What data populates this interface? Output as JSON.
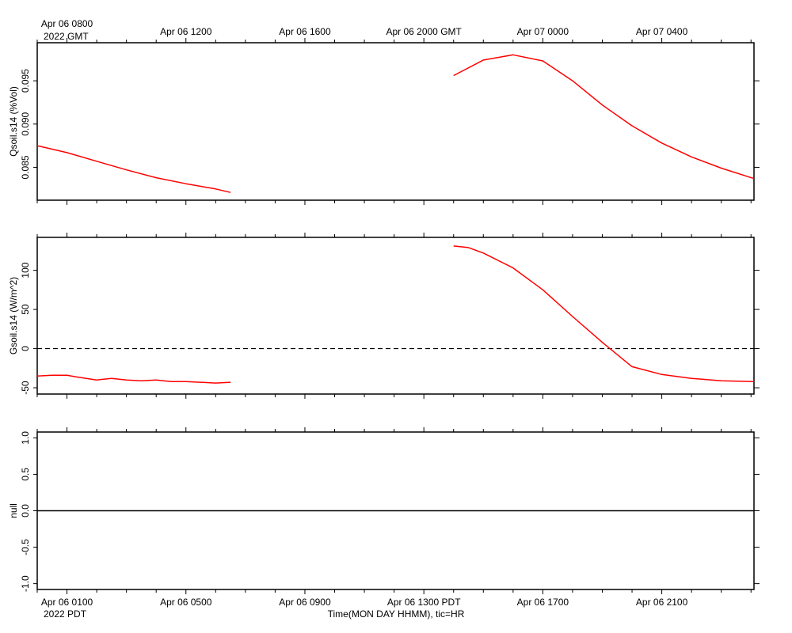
{
  "chart_data": {
    "type": "line",
    "top_axis": {
      "timezone_label": "2022 GMT",
      "first_tick_label": "Apr 06 0800",
      "tick_labels": [
        {
          "hour": 0,
          "label": "Apr 06 0800"
        },
        {
          "hour": 4,
          "label": "Apr 06 1200"
        },
        {
          "hour": 8,
          "label": "Apr 06 1600"
        },
        {
          "hour": 12,
          "label": "Apr 06 2000 GMT"
        },
        {
          "hour": 16,
          "label": "Apr 07 0000"
        },
        {
          "hour": 20,
          "label": "Apr 07 0400"
        }
      ]
    },
    "bottom_axis": {
      "timezone_label": "2022 PDT",
      "title": "Time(MON DAY HHMM), tic=HR",
      "tick_labels": [
        {
          "hour": 0,
          "label": "Apr 06 0100"
        },
        {
          "hour": 4,
          "label": "Apr 06 0500"
        },
        {
          "hour": 8,
          "label": "Apr 06 0900"
        },
        {
          "hour": 12,
          "label": "Apr 06 1300 PDT"
        },
        {
          "hour": 16,
          "label": "Apr 06 1700"
        },
        {
          "hour": 20,
          "label": "Apr 06 2100"
        }
      ]
    },
    "x_unit": "hours after Apr 06 0100 PDT (Apr 06 0800 GMT)",
    "xlim": [
      -1,
      23.1
    ],
    "panels": [
      {
        "ylabel": "Qsoil.s14 (%Vol)",
        "ylim": [
          0.0812,
          0.0994
        ],
        "yticks": [
          0.085,
          0.09,
          0.095
        ],
        "ytick_labels": [
          "0.085",
          "0.090",
          "0.095"
        ],
        "zero_line": false,
        "series": [
          {
            "color": "#ff0000",
            "segments": [
              {
                "x": [
                  -1,
                  0,
                  1,
                  2,
                  3,
                  4,
                  5,
                  5.5
                ],
                "y": [
                  0.0875,
                  0.0867,
                  0.0857,
                  0.0847,
                  0.0838,
                  0.0831,
                  0.0825,
                  0.0821
                ]
              },
              {
                "x": [
                  13,
                  14,
                  15,
                  16,
                  17,
                  18,
                  19,
                  20,
                  21,
                  22,
                  23.1
                ],
                "y": [
                  0.0956,
                  0.0974,
                  0.098,
                  0.0973,
                  0.095,
                  0.0922,
                  0.0898,
                  0.0878,
                  0.0862,
                  0.0849,
                  0.0837
                ]
              }
            ]
          }
        ]
      },
      {
        "ylabel": "Gsoil.s14 (W/m^2)",
        "ylim": [
          -58,
          142
        ],
        "yticks": [
          -50,
          0,
          50,
          100
        ],
        "ytick_labels": [
          "-50",
          "0",
          "50",
          "100"
        ],
        "zero_line": true,
        "series": [
          {
            "color": "#ff0000",
            "segments": [
              {
                "x": [
                  -1,
                  -0.5,
                  0,
                  0.3,
                  1,
                  1.5,
                  2,
                  2.5,
                  3,
                  3.5,
                  4,
                  5,
                  5.5
                ],
                "y": [
                  -35,
                  -34,
                  -34,
                  -36,
                  -40,
                  -38,
                  -40,
                  -41,
                  -40,
                  -42,
                  -42,
                  -44,
                  -43
                ]
              },
              {
                "x": [
                  13,
                  13.5,
                  14,
                  15,
                  16,
                  17,
                  18,
                  19,
                  20,
                  21,
                  22,
                  23.1
                ],
                "y": [
                  131,
                  129,
                  122,
                  103,
                  75,
                  41,
                  8,
                  -23,
                  -33,
                  -38,
                  -41,
                  -42
                ]
              }
            ]
          }
        ]
      },
      {
        "ylabel": "null",
        "ylim": [
          -1.08,
          1.08
        ],
        "yticks": [
          -1,
          -0.5,
          0,
          0.5,
          1
        ],
        "ytick_labels": [
          "-1.0",
          "-0.5",
          "0.0",
          "0.5",
          "1.0"
        ],
        "zero_line": false,
        "series": [
          {
            "color": "#000000",
            "segments": [
              {
                "x": [
                  -1,
                  23.1
                ],
                "y": [
                  0,
                  0
                ]
              }
            ]
          }
        ]
      }
    ]
  }
}
